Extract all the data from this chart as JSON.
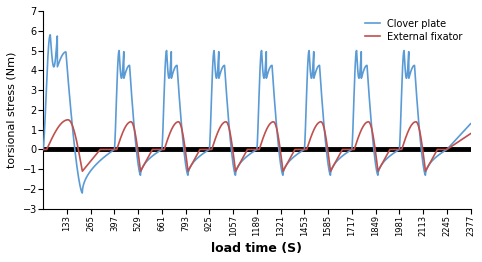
{
  "xlabel": "load time (S)",
  "ylabel": "torsional stress (Nm)",
  "xlim": [
    1,
    2377
  ],
  "ylim": [
    -3,
    7
  ],
  "yticks": [
    -3,
    -2,
    -1,
    0,
    1,
    2,
    3,
    4,
    5,
    6,
    7
  ],
  "xticks": [
    133,
    265,
    397,
    529,
    661,
    793,
    925,
    1057,
    1189,
    1321,
    1453,
    1585,
    1717,
    1849,
    1981,
    2113,
    2245,
    2377
  ],
  "legend_blue": "Clover plate",
  "legend_red": "External fixator",
  "blue_color": "#5B9BD5",
  "red_color": "#C0504D",
  "zero_line_color": "#000000",
  "zero_line_lw": 3.5,
  "line_lw": 1.2,
  "background_color": "#ffffff",
  "cycle_starts": [
    1,
    397,
    661,
    925,
    1189,
    1453,
    1717,
    1981,
    2245
  ],
  "blue_peaks": [
    5.8,
    5.0,
    5.0,
    5.0,
    5.0,
    5.0,
    5.0,
    5.0,
    5.0
  ],
  "blue_troughs": [
    -2.2,
    -1.3,
    -1.3,
    -1.3,
    -1.3,
    -1.3,
    -1.3,
    -1.3,
    -1.3
  ],
  "red_peaks": [
    1.5,
    1.4,
    1.4,
    1.4,
    1.4,
    1.4,
    1.4,
    1.4,
    1.4
  ],
  "red_troughs": [
    -1.1,
    -1.1,
    -1.1,
    -1.1,
    -1.1,
    -1.1,
    -1.1,
    -1.1,
    -1.1
  ],
  "blue_second_peak_ratio": 0.85,
  "xlabel_fontsize": 9,
  "ylabel_fontsize": 8,
  "tick_fontsize": 6
}
